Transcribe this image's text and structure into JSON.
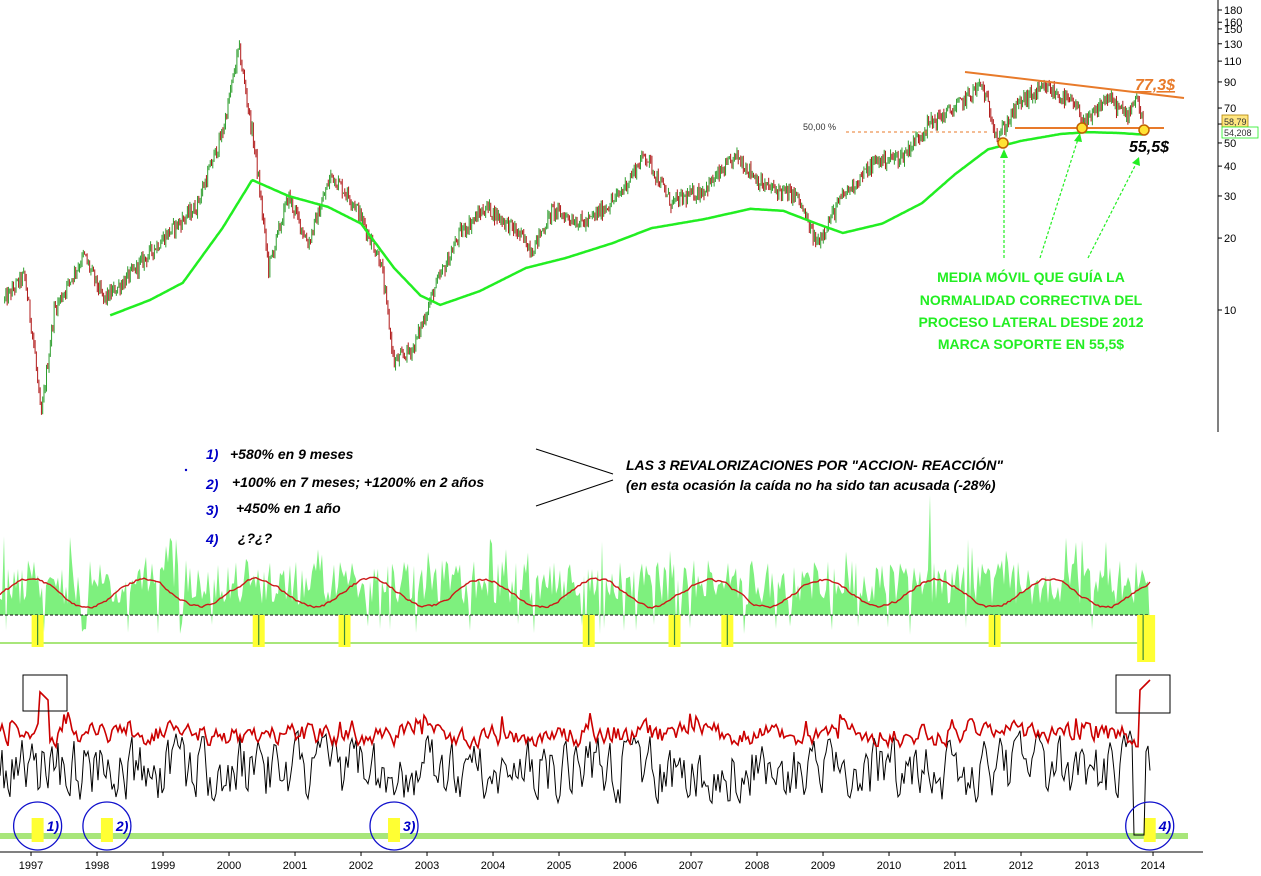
{
  "chart_data": [
    {
      "type": "line",
      "scale": "log",
      "ylim": [
        4,
        180
      ],
      "y_ticks": [
        "180",
        "160",
        "150",
        "130",
        "110",
        "90",
        "70",
        "60",
        "50",
        "40",
        "30",
        "20",
        "10"
      ],
      "x_ticks": [
        "1997",
        "1998",
        "1999",
        "2000",
        "2001",
        "2002",
        "2003",
        "2004",
        "2005",
        "2006",
        "2007",
        "2008",
        "2009",
        "2010",
        "2011",
        "2012",
        "2013",
        "2014"
      ],
      "price_keypoints": [
        {
          "x": 1996.6,
          "y": 11
        },
        {
          "x": 1996.9,
          "y": 14
        },
        {
          "x": 1997.05,
          "y": 7
        },
        {
          "x": 1997.15,
          "y": 3.5
        },
        {
          "x": 1997.35,
          "y": 10
        },
        {
          "x": 1997.8,
          "y": 17
        },
        {
          "x": 1998.1,
          "y": 11
        },
        {
          "x": 1998.5,
          "y": 14
        },
        {
          "x": 1999.0,
          "y": 20
        },
        {
          "x": 1999.5,
          "y": 27
        },
        {
          "x": 1999.9,
          "y": 55
        },
        {
          "x": 2000.15,
          "y": 125
        },
        {
          "x": 2000.4,
          "y": 45
        },
        {
          "x": 2000.6,
          "y": 15
        },
        {
          "x": 2000.9,
          "y": 30
        },
        {
          "x": 2001.2,
          "y": 19
        },
        {
          "x": 2001.55,
          "y": 37
        },
        {
          "x": 2001.9,
          "y": 28
        },
        {
          "x": 2002.3,
          "y": 16
        },
        {
          "x": 2002.5,
          "y": 6
        },
        {
          "x": 2002.8,
          "y": 7
        },
        {
          "x": 2003.1,
          "y": 12
        },
        {
          "x": 2003.5,
          "y": 21
        },
        {
          "x": 2003.9,
          "y": 27
        },
        {
          "x": 2004.3,
          "y": 22
        },
        {
          "x": 2004.6,
          "y": 18
        },
        {
          "x": 2004.9,
          "y": 26
        },
        {
          "x": 2005.4,
          "y": 23
        },
        {
          "x": 2005.9,
          "y": 30
        },
        {
          "x": 2006.3,
          "y": 45
        },
        {
          "x": 2006.7,
          "y": 28
        },
        {
          "x": 2007.2,
          "y": 32
        },
        {
          "x": 2007.7,
          "y": 44
        },
        {
          "x": 2008.1,
          "y": 33
        },
        {
          "x": 2008.6,
          "y": 30
        },
        {
          "x": 2008.9,
          "y": 19
        },
        {
          "x": 2009.3,
          "y": 30
        },
        {
          "x": 2009.8,
          "y": 42
        },
        {
          "x": 2010.2,
          "y": 44
        },
        {
          "x": 2010.6,
          "y": 60
        },
        {
          "x": 2011.0,
          "y": 70
        },
        {
          "x": 2011.4,
          "y": 88
        },
        {
          "x": 2011.65,
          "y": 53
        },
        {
          "x": 2012.0,
          "y": 75
        },
        {
          "x": 2012.4,
          "y": 85
        },
        {
          "x": 2012.8,
          "y": 72
        },
        {
          "x": 2013.0,
          "y": 60
        },
        {
          "x": 2013.3,
          "y": 78
        },
        {
          "x": 2013.6,
          "y": 65
        },
        {
          "x": 2013.75,
          "y": 80
        },
        {
          "x": 2013.85,
          "y": 58.79
        }
      ],
      "moving_average_keypoints": [
        {
          "x": 1998.2,
          "y": 9.5
        },
        {
          "x": 1998.8,
          "y": 11
        },
        {
          "x": 1999.3,
          "y": 13
        },
        {
          "x": 1999.9,
          "y": 22
        },
        {
          "x": 2000.35,
          "y": 35
        },
        {
          "x": 2000.9,
          "y": 30
        },
        {
          "x": 2001.5,
          "y": 27
        },
        {
          "x": 2002.0,
          "y": 23
        },
        {
          "x": 2002.5,
          "y": 15
        },
        {
          "x": 2002.9,
          "y": 11.5
        },
        {
          "x": 2003.2,
          "y": 10.5
        },
        {
          "x": 2003.8,
          "y": 12
        },
        {
          "x": 2004.5,
          "y": 15
        },
        {
          "x": 2005.1,
          "y": 16.5
        },
        {
          "x": 2005.8,
          "y": 19
        },
        {
          "x": 2006.4,
          "y": 22
        },
        {
          "x": 2007.2,
          "y": 24
        },
        {
          "x": 2007.9,
          "y": 26.5
        },
        {
          "x": 2008.4,
          "y": 26
        },
        {
          "x": 2008.9,
          "y": 23
        },
        {
          "x": 2009.3,
          "y": 21
        },
        {
          "x": 2009.9,
          "y": 23
        },
        {
          "x": 2010.5,
          "y": 28
        },
        {
          "x": 2011.0,
          "y": 37
        },
        {
          "x": 2011.5,
          "y": 47
        },
        {
          "x": 2012.0,
          "y": 51
        },
        {
          "x": 2012.6,
          "y": 54.5
        },
        {
          "x": 2013.0,
          "y": 55.5
        },
        {
          "x": 2013.5,
          "y": 55
        },
        {
          "x": 2013.85,
          "y": 54.208
        }
      ],
      "last_price": "58,79",
      "ma_value": "54,208",
      "fib_label": "50,00 %",
      "resistance_label": "77,3$",
      "support_label": "55,5$",
      "green_annotation": [
        "MEDIA MÓVIL QUE GUÍA LA",
        "NORMALIDAD CORRECTIVA DEL",
        "PROCESO LATERAL DESDE 2012",
        "MARCA SOPORTE EN 55,5$"
      ],
      "colors": {
        "up_candle": "#2e9e2e",
        "down_candle": "#b01818",
        "moving_average": "#22ee22",
        "trendline": "#e87a2a",
        "resistance_label": "#e87a2a",
        "fib_line": "#e87a2a"
      }
    },
    {
      "type": "area",
      "description_of_visual": "oscillator histogram with smoothed line",
      "colors": {
        "area": "#7ef07e",
        "line": "#cc1818",
        "baseline": "#000000",
        "lower_line": "#a8e67a",
        "highlight": "#ffff33"
      },
      "highlight_years": [
        1997.1,
        2000.45,
        2001.75,
        2005.45,
        2006.75,
        2007.55,
        2011.6,
        2013.85
      ]
    },
    {
      "type": "line",
      "colors": {
        "fast": "#000000",
        "slow": "#cc0000",
        "floor": "#a8e67a",
        "highlight": "#ffff33",
        "circle": "#1010cc"
      },
      "circled_signals": [
        {
          "x": 1997.1,
          "label": "1)"
        },
        {
          "x": 1998.15,
          "label": "2)"
        },
        {
          "x": 2002.5,
          "label": "3)"
        },
        {
          "x": 2013.95,
          "label": "4)"
        }
      ]
    }
  ],
  "notes": {
    "items": [
      {
        "num": "1)",
        "text": "+580% en 9 meses"
      },
      {
        "num": "2)",
        "text": "+100% en 7 meses; +1200% en 2 años"
      },
      {
        "num": "3)",
        "text": "+450% en 1 año"
      },
      {
        "num": "4)",
        "text": "¿?¿?"
      }
    ],
    "title_line1": "LAS 3 REVALORIZACIONES POR \"ACCION- REACCIÓN\"",
    "title_line2": "(en esta ocasión la caída no ha sido tan acusada (-28%)"
  }
}
